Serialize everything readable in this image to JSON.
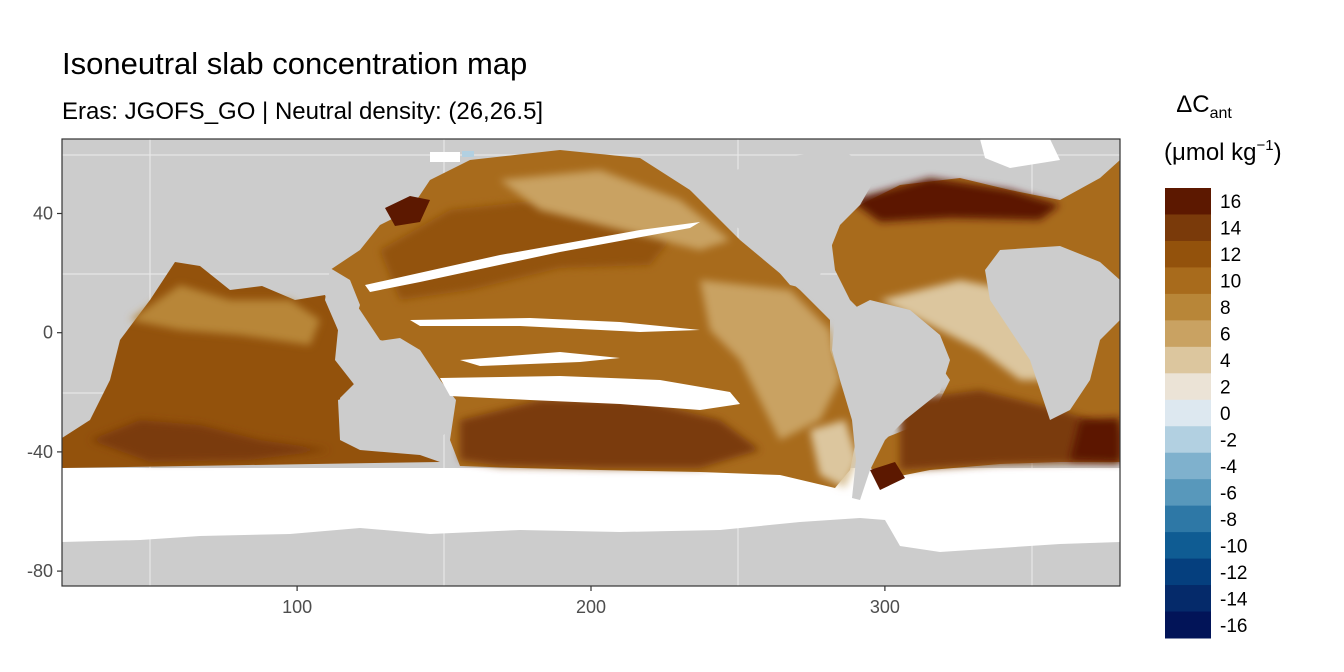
{
  "chart_data": {
    "type": "heatmap",
    "title": "Isoneutral slab concentration map",
    "subtitle": "Eras: JGOFS_GO | Neutral density: (26,26.5]",
    "legend": {
      "title_main": "ΔC",
      "title_sub": "ant",
      "unit_open": "(μmol kg",
      "unit_exp": "−1",
      "unit_close": ")",
      "placement": "right",
      "bins": [
        {
          "label": "16",
          "color": "#5c1800"
        },
        {
          "label": "14",
          "color": "#7a3a0a"
        },
        {
          "label": "12",
          "color": "#93520c"
        },
        {
          "label": "10",
          "color": "#a86b1c"
        },
        {
          "label": "8",
          "color": "#b88638"
        },
        {
          "label": "6",
          "color": "#c9a262"
        },
        {
          "label": "4",
          "color": "#dcc69e"
        },
        {
          "label": "2",
          "color": "#ebe3d6"
        },
        {
          "label": "0",
          "color": "#dde8f0"
        },
        {
          "label": "-2",
          "color": "#b2d0e1"
        },
        {
          "label": "-4",
          "color": "#7fb1cd"
        },
        {
          "label": "-6",
          "color": "#5898bb"
        },
        {
          "label": "-8",
          "color": "#2e78a6"
        },
        {
          "label": "-10",
          "color": "#0f5c93"
        },
        {
          "label": "-12",
          "color": "#053f7e"
        },
        {
          "label": "-14",
          "color": "#052a6a"
        },
        {
          "label": "-16",
          "color": "#021458"
        }
      ]
    },
    "x_axis": {
      "range": [
        20,
        380
      ],
      "ticks": [
        "100",
        "200",
        "300"
      ],
      "tick_values": [
        100,
        200,
        300
      ]
    },
    "y_axis": {
      "range": [
        -85,
        65
      ],
      "ticks": [
        "40",
        "0",
        "-40",
        "-80"
      ],
      "tick_values": [
        40,
        0,
        -40,
        -80
      ]
    },
    "grid": true,
    "colors": {
      "land": "#cccccc",
      "ice": "#ffffff",
      "panel_border": "#333333"
    }
  }
}
